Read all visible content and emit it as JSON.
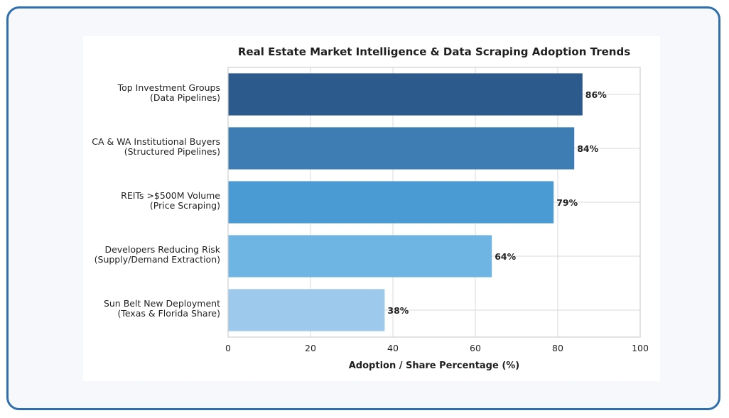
{
  "chart_data": {
    "type": "bar",
    "orientation": "horizontal",
    "title": "Real Estate Market Intelligence & Data Scraping Adoption Trends",
    "xlabel": "Adoption / Share Percentage (%)",
    "ylabel": "",
    "xlim": [
      0,
      100
    ],
    "xticks": [
      0,
      20,
      40,
      60,
      80,
      100
    ],
    "grid": true,
    "categories": [
      [
        "Top Investment Groups",
        "(Data Pipelines)"
      ],
      [
        "CA & WA Institutional Buyers",
        "(Structured Pipelines)"
      ],
      [
        "REITs >$500M Volume",
        "(Price Scraping)"
      ],
      [
        "Developers Reducing Risk",
        "(Supply/Demand Extraction)"
      ],
      [
        "Sun Belt New Deployment",
        "(Texas & Florida Share)"
      ]
    ],
    "values": [
      86,
      84,
      79,
      64,
      38
    ],
    "value_labels": [
      "86%",
      "84%",
      "79%",
      "64%",
      "38%"
    ],
    "colors": [
      "#2c5a8c",
      "#3d7db3",
      "#4a9ad4",
      "#6fb5e3",
      "#9dc9ec"
    ]
  }
}
